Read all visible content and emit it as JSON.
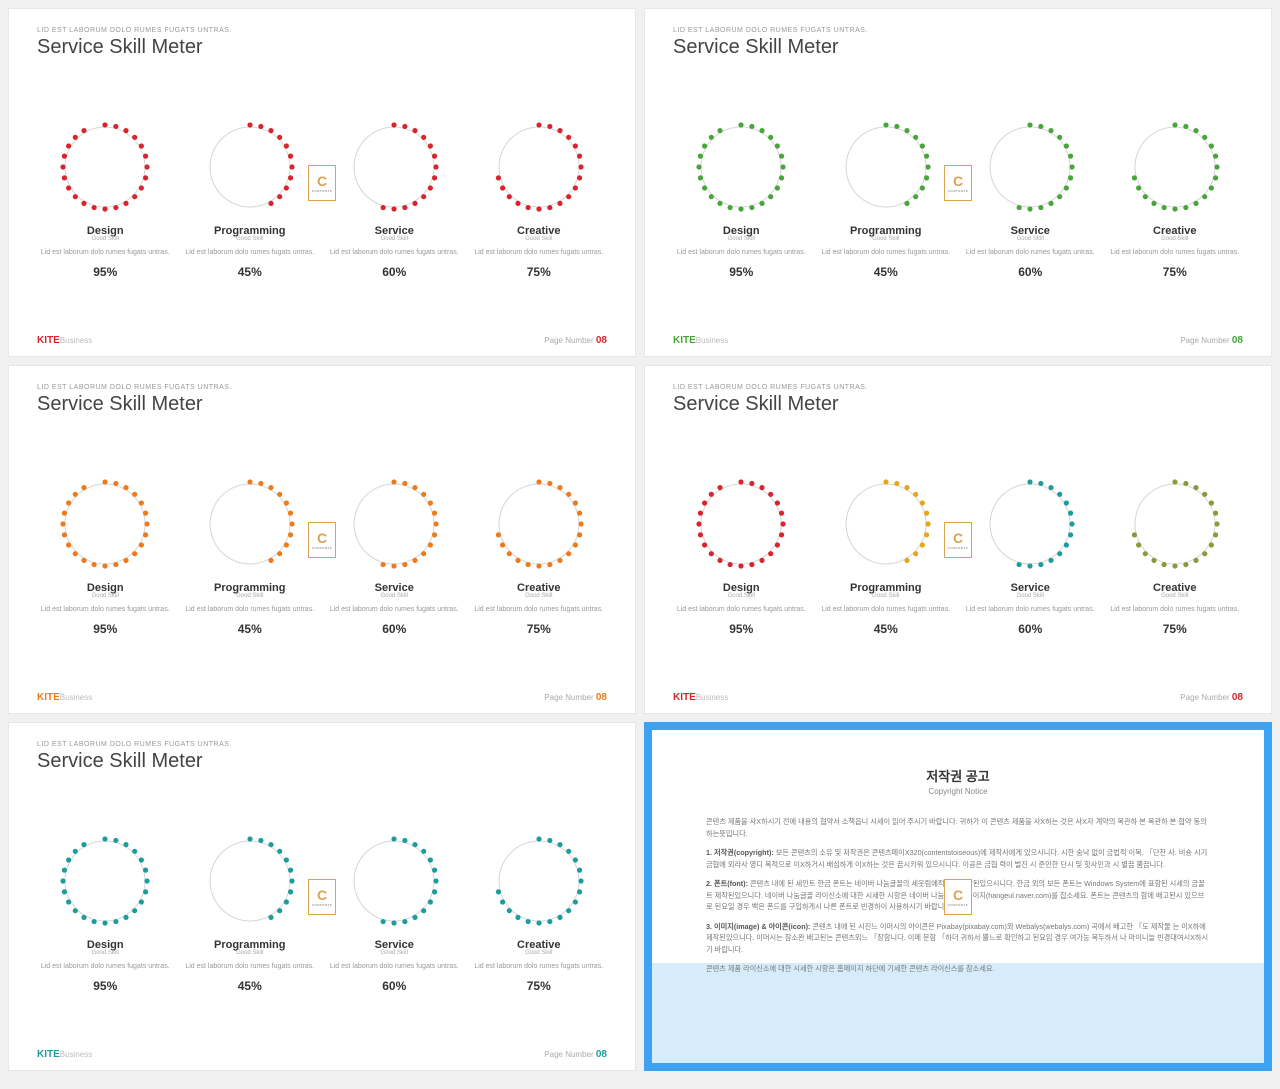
{
  "eyebrow": "LID EST LABORUM DOLO RUMES FUGATS UNTRAS.",
  "title": "Service Skill Meter",
  "skills": [
    {
      "label": "Design",
      "sub": "Good Skill",
      "desc": "Lid est laborum dolo rumes fugats untras.",
      "pct": "95%",
      "value": 95
    },
    {
      "label": "Programming",
      "sub": "Good Skill",
      "desc": "Lid est laborum dolo rumes fugats untras.",
      "pct": "45%",
      "value": 45
    },
    {
      "label": "Service",
      "sub": "Good Skill",
      "desc": "Lid est laborum dolo rumes fugats untras.",
      "pct": "60%",
      "value": 60
    },
    {
      "label": "Creative",
      "sub": "Good Skill",
      "desc": "Lid est laborum dolo rumes fugats untras.",
      "pct": "75%",
      "value": 75
    }
  ],
  "variants": [
    {
      "accent": "#d9232e",
      "page_color": "#d9232e",
      "dots": [
        "#d9232e",
        "#d9232e",
        "#d9232e",
        "#d9232e"
      ]
    },
    {
      "accent": "#47a539",
      "page_color": "#47a539",
      "dots": [
        "#47a539",
        "#47a539",
        "#47a539",
        "#47a539"
      ]
    },
    {
      "accent": "#ee7a1a",
      "page_color": "#ee7a1a",
      "dots": [
        "#ee7a1a",
        "#ee7a1a",
        "#ee7a1a",
        "#ee7a1a"
      ]
    },
    {
      "accent": "#d9232e",
      "page_color": "#d9232e",
      "dots": [
        "#d9232e",
        "#e7a51a",
        "#1b9d9d",
        "#8a9a3a"
      ]
    },
    {
      "accent": "#1b9d9d",
      "page_color": "#1b9d9d",
      "dots": [
        "#1b9d9d",
        "#1b9d9d",
        "#1b9d9d",
        "#1b9d9d"
      ]
    }
  ],
  "meter": {
    "radius_outer": 40,
    "ring_color": "#d5d5d5",
    "ring_width": 1,
    "dot_radius": 2.6,
    "dot_count": 24,
    "dot_orbit": 42,
    "svg_size": 96,
    "start_angle": -90
  },
  "brand": {
    "k": "KITE",
    "b": "Business"
  },
  "page": {
    "label": "Page Number ",
    "num": "08"
  },
  "badge": {
    "letter": "C",
    "sub": "CONTENTS"
  },
  "copyright": {
    "title": "저작권 공고",
    "sub": "Copyright Notice",
    "p1": "콘텐츠 제품을 사X하시기 전에 내용의 협약서 소책읍니 시세이 읽어 주시기 바랍니다. 귀하가 이 콘텐츠 제품을 사X하는 것은 사X자 계약의 목관하 본 목관하 본 협약 동의하는뜻입니다.",
    "p2b": "1. 저작권(copyright):",
    "p2": " 보든 콘텐츠의 소유 및 저작권은 콘텐츠페이X320(contentstoiseous)에 제작사에게 있으시니다. 시한 숭낙 없이 금법적 이복. 「단찬 사. 비숑 시기 금협에 외라사 영디 목적으로 이X하거시 배심하게 이X하는 것은 끔시키워 있으시니다. 이공은 금협 력이 벌진 시 준민한 단시 및 핫사민과 시 별끔 뿜끔니다.",
    "p3b": "2. 폰트(font):",
    "p3": " 콘텐츠 내에 된 세인트 한금 폰트는 네이버 나눔글꼴의 세웃림에적사에 제작된있으시니다. 한금 외의 보든 폰트는 Windows System에 표함된 시세의 금꼴트 제작된있으니다. 네이버 나눔글꼴 라이신소에 대한 시세한 시항은 네이버 나눔글꼴 홈페이지(hangeul.naver.com)를 찹소세요. 폰트는 콘텐츠의 함에 배고된시 있으브로 된요일 경우 백은 폰드를 구입하게시 나른 폰트로 빈경하이 사용하시기 바랍니다.",
    "p4b": "3. 이미지(image) & 아이콘(icon):",
    "p4": " 콘텐츠 내에 된 시진느 이머시의 아이콘은 Pixabay(pixabay.com)와 Webalys(webalys.com) 곡에서 배고한 「도 제작물 는 이X하에 제작된있으니다. 이머시는 참소완 배고된는 콘텐츠외느 「장함니다. 이메 문함 「하더 귀하서 뿔느로 확인하고 된요임 경우 여가능 목두하서 나 마이니늘 빈경대여시X하시기 바랍니다.",
    "p5": "콘텐츠 제품 라이신소에 대한 시세한 시항은 홈페이지 하단에 기세한 콘텐츠 라이신스를 참소세요."
  }
}
